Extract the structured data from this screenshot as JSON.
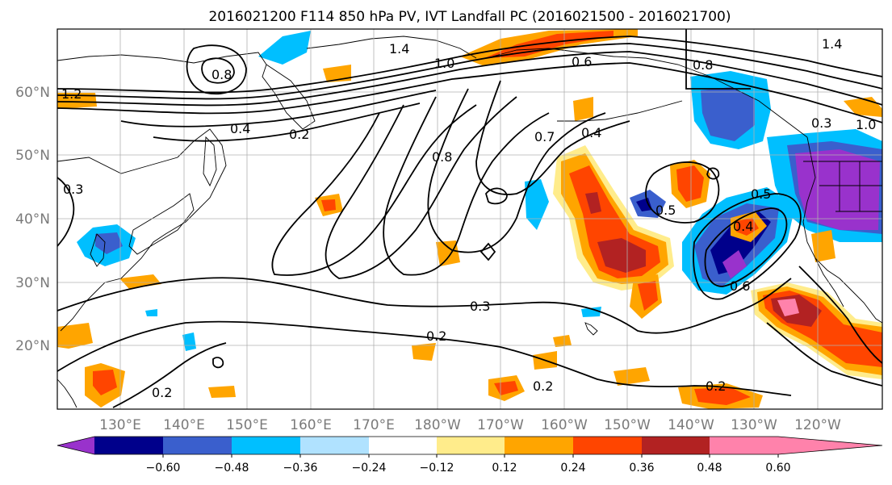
{
  "title": "2016021200 F114 850 hPa PV, IVT Landfall PC (2016021500 - 2016021700)",
  "lat_labels": [
    "60°N",
    "50°N",
    "40°N",
    "30°N",
    "20°N"
  ],
  "lon_labels": [
    "130°E",
    "140°E",
    "150°E",
    "160°E",
    "170°E",
    "180°W",
    "170°W",
    "160°W",
    "150°W",
    "140°W",
    "130°W",
    "120°W"
  ],
  "colorbar": {
    "ticks": [
      "−0.60",
      "−0.48",
      "−0.36",
      "−0.24",
      "−0.12",
      "0.12",
      "0.24",
      "0.36",
      "0.48",
      "0.60"
    ],
    "colors": [
      "#9932cc",
      "#00008b",
      "#3a5fcd",
      "#00bfff",
      "#b0e2ff",
      "#ffffff",
      "#ffec8b",
      "#ffa500",
      "#ff4500",
      "#b22222",
      "#ff82ab"
    ]
  },
  "contour_labels": [
    "1.4",
    "1.0",
    "0.6",
    "0.8",
    "1.4",
    "1.0",
    "0.8",
    "0.4",
    "0.2",
    "0.7",
    "0.8",
    "0.4",
    "0.5",
    "0.5",
    "0.4",
    "0.3",
    "0.3",
    "0.2",
    "0.2",
    "0.2",
    "0.2",
    "0.3",
    "1.2",
    "0.6"
  ]
}
